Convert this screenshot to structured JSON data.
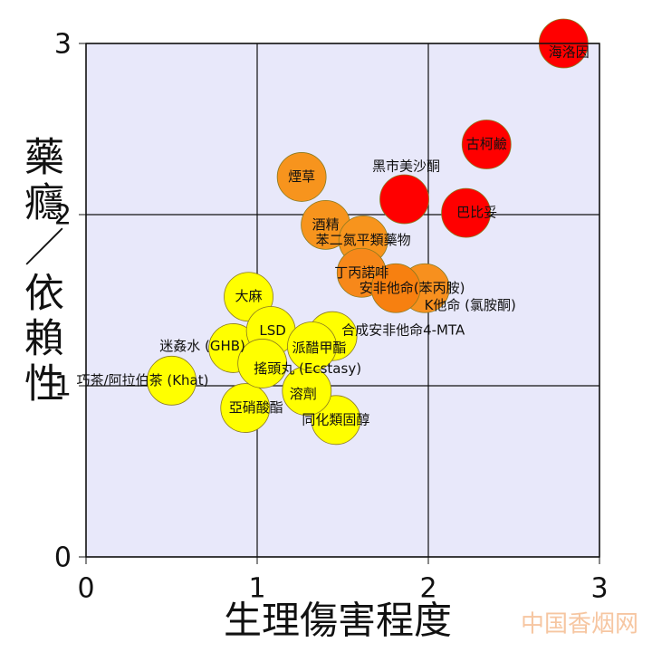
{
  "chart_data": {
    "type": "scatter",
    "x_label": "生理傷害程度",
    "y_label": "藥癮／依賴性",
    "watermark": "中国香烟网",
    "xlim": [
      0,
      3
    ],
    "ylim": [
      0,
      3
    ],
    "xticks": [
      0,
      1,
      2,
      3
    ],
    "yticks": [
      0,
      1,
      2,
      3
    ],
    "grid": true,
    "points": [
      {
        "label": "巧茶/阿拉伯茶 (Khat)",
        "x": 0.5,
        "y": 1.03,
        "color": "#ffff00"
      },
      {
        "label": "亞硝酸酯",
        "x": 0.93,
        "y": 0.87,
        "color": "#ffff00"
      },
      {
        "label": "同化類固醇",
        "x": 1.46,
        "y": 0.8,
        "color": "#ffff00"
      },
      {
        "label": "溶劑",
        "x": 1.29,
        "y": 0.97,
        "color": "#ffff00"
      },
      {
        "label": "迷姦水 (GHB)",
        "x": 0.86,
        "y": 1.22,
        "color": "#ffff00"
      },
      {
        "label": "大麻",
        "x": 0.95,
        "y": 1.52,
        "color": "#ffff00"
      },
      {
        "label": "LSD",
        "x": 1.08,
        "y": 1.32,
        "color": "#ffff00"
      },
      {
        "label": "合成安非他命4-MTA",
        "x": 1.44,
        "y": 1.29,
        "color": "#ffff00"
      },
      {
        "label": "派醋甲酯",
        "x": 1.32,
        "y": 1.23,
        "color": "#ffff00"
      },
      {
        "label": "搖頭丸 (Ecstasy)",
        "x": 1.03,
        "y": 1.13,
        "color": "#ffff00"
      },
      {
        "label": "煙草",
        "x": 1.26,
        "y": 2.22,
        "color": "#f7941d"
      },
      {
        "label": "酒精",
        "x": 1.4,
        "y": 1.94,
        "color": "#f7941d"
      },
      {
        "label": "苯二氮平類藥物",
        "x": 1.62,
        "y": 1.85,
        "color": "#f7941d"
      },
      {
        "label": "丁丙諾啡",
        "x": 1.61,
        "y": 1.66,
        "color": "#f7881a"
      },
      {
        "label": "K他命 (氯胺酮)",
        "x": 1.98,
        "y": 1.57,
        "color": "#f7901e"
      },
      {
        "label": "安非他命(苯丙胺)",
        "x": 1.81,
        "y": 1.57,
        "color": "#f78010"
      },
      {
        "label": "黑市美沙酮",
        "x": 1.86,
        "y": 2.09,
        "color": "#ff0000"
      },
      {
        "label": "巴比妥",
        "x": 2.22,
        "y": 2.01,
        "color": "#ff0000"
      },
      {
        "label": "古柯鹼",
        "x": 2.34,
        "y": 2.41,
        "color": "#ff0000"
      },
      {
        "label": "海洛因",
        "x": 2.79,
        "y": 3.0,
        "color": "#ff0000"
      }
    ]
  }
}
